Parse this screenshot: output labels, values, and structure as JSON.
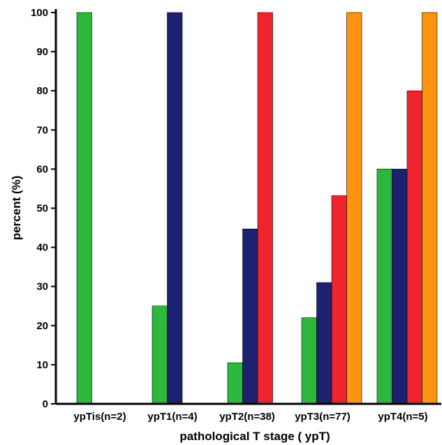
{
  "chart_data": {
    "type": "bar",
    "title": "",
    "xlabel": "pathological T stage ( ypT)",
    "ylabel": "percent (%)",
    "ylim": [
      0,
      100
    ],
    "yticks": [
      0,
      10,
      20,
      30,
      40,
      50,
      60,
      70,
      80,
      90,
      100
    ],
    "grid": false,
    "legend": "none",
    "categories": [
      "ypTis(n=2)",
      "ypT1(n=4)",
      "ypT2(n=38)",
      "ypT3(n=77)",
      "ypT4(n=5)"
    ],
    "series": [
      {
        "color": "#2db83d",
        "values": [
          100,
          25,
          10.5,
          22,
          60
        ]
      },
      {
        "color": "#1c2270",
        "values": [
          0,
          100,
          44.7,
          31,
          60
        ]
      },
      {
        "color": "#f0242e",
        "values": [
          0,
          0,
          100,
          53.2,
          80
        ]
      },
      {
        "color": "#ff9410",
        "values": [
          0,
          0,
          0,
          100,
          100
        ]
      }
    ]
  }
}
